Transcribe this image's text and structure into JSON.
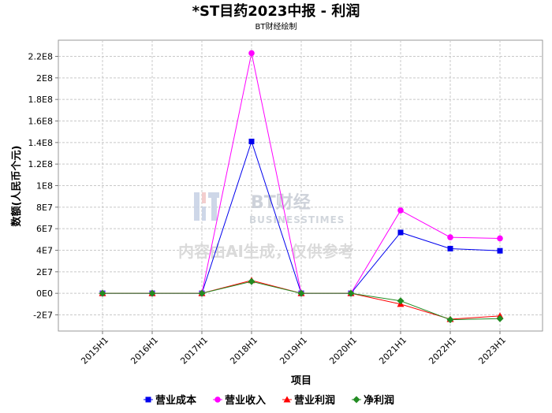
{
  "chart_data": {
    "type": "line",
    "title": "*ST目药2023中报 - 利润",
    "subtitle": "BT财经绘制",
    "xlabel": "项目",
    "ylabel": "数额(人民币个元)",
    "categories": [
      "2015H1",
      "2016H1",
      "2017H1",
      "2018H1",
      "2019H1",
      "2020H1",
      "2021H1",
      "2022H1",
      "2023H1"
    ],
    "ylim": [
      -35000000,
      235000000
    ],
    "yticks": [
      -20000000,
      0,
      20000000,
      40000000,
      60000000,
      80000000,
      100000000,
      120000000,
      140000000,
      160000000,
      180000000,
      200000000,
      220000000
    ],
    "ytick_labels": [
      "-2E7",
      "0E0",
      "2E7",
      "4E7",
      "6E7",
      "8E7",
      "1E8",
      "1.2E8",
      "1.4E8",
      "1.6E8",
      "1.8E8",
      "2E8",
      "2.2E8"
    ],
    "grid": true,
    "legend_position": "bottom",
    "series": [
      {
        "name": "营业成本",
        "color": "#0000ee",
        "marker": "square",
        "values": [
          0,
          0,
          0,
          141000000,
          0,
          0,
          56500000,
          41500000,
          39500000
        ]
      },
      {
        "name": "营业收入",
        "color": "#ff00ff",
        "marker": "circle",
        "values": [
          0,
          0,
          0,
          223000000,
          0,
          0,
          77000000,
          52000000,
          51000000
        ]
      },
      {
        "name": "营业利润",
        "color": "#ff0000",
        "marker": "triangle",
        "values": [
          0,
          0,
          0,
          12000000,
          0,
          0,
          -10000000,
          -24000000,
          -21000000
        ]
      },
      {
        "name": "净利润",
        "color": "#228b22",
        "marker": "diamond",
        "values": [
          0,
          0,
          0,
          11000000,
          0,
          0,
          -7000000,
          -24500000,
          -23500000
        ]
      }
    ]
  },
  "watermark": {
    "logo_en": "BT财经",
    "logo_sub": "BUSINESSTIMES",
    "note": "内容由AI生成，仅供参考"
  }
}
